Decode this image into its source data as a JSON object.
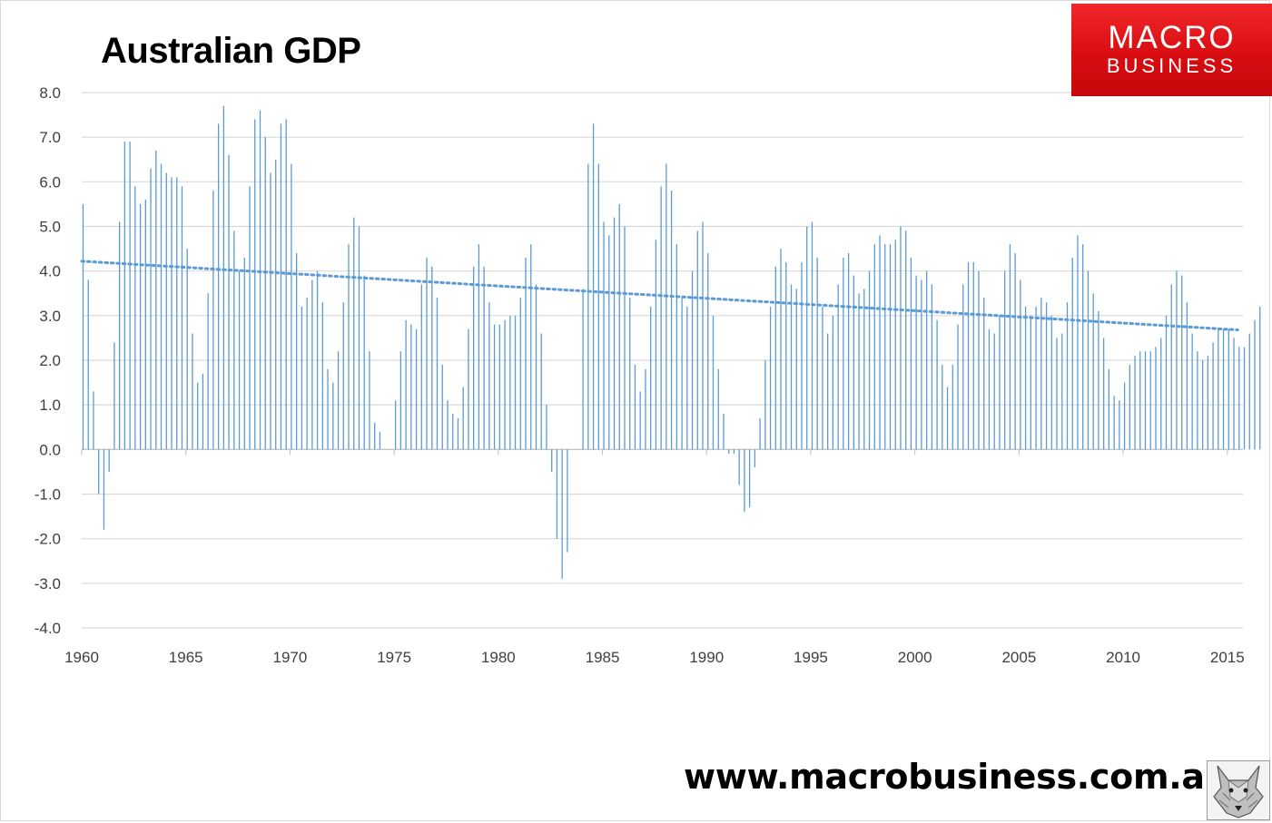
{
  "title": "Australian GDP",
  "brand": {
    "line1": "MACRO",
    "line2": "BUSINESS",
    "color": "#e8191e"
  },
  "footer": {
    "url": "www.macrobusiness.com.au"
  },
  "chart_data": {
    "type": "bar",
    "title": "Australian GDP",
    "xlabel": "",
    "ylabel": "",
    "ylim": [
      -4,
      8
    ],
    "xlim": [
      1960,
      2015.75
    ],
    "grid": true,
    "bar_color": "#5b9bd5",
    "trendline": {
      "type": "linear",
      "style": "dotted",
      "color": "#5b9bd5",
      "from": [
        1960,
        4.22
      ],
      "to": [
        2015.5,
        2.68
      ]
    },
    "y_ticks": [
      "8.0",
      "7.0",
      "6.0",
      "5.0",
      "4.0",
      "3.0",
      "2.0",
      "1.0",
      "0.0",
      "-1.0",
      "-2.0",
      "-3.0",
      "-4.0"
    ],
    "x_ticks": [
      "1960",
      "1965",
      "1970",
      "1975",
      "1980",
      "1985",
      "1990",
      "1995",
      "2000",
      "2005",
      "2010",
      "2015"
    ],
    "x_start": 1960,
    "x_step": 0.25,
    "values": [
      5.5,
      3.8,
      1.3,
      -1.0,
      -1.8,
      -0.5,
      2.4,
      5.1,
      6.9,
      6.9,
      5.9,
      5.5,
      5.6,
      6.3,
      6.7,
      6.4,
      6.2,
      6.1,
      6.1,
      5.9,
      4.5,
      2.6,
      1.5,
      1.7,
      3.5,
      5.8,
      7.3,
      7.7,
      6.6,
      4.9,
      4.0,
      4.3,
      5.9,
      7.4,
      7.6,
      7.0,
      6.2,
      6.5,
      7.3,
      7.4,
      6.4,
      4.4,
      3.2,
      3.4,
      3.8,
      4.0,
      3.3,
      1.8,
      1.5,
      2.2,
      3.3,
      4.6,
      5.2,
      5.0,
      3.9,
      2.2,
      0.6,
      0.4,
      0.0,
      0.0,
      1.1,
      2.2,
      2.9,
      2.8,
      2.7,
      3.7,
      4.3,
      4.1,
      3.4,
      1.9,
      1.1,
      0.8,
      0.7,
      1.4,
      2.7,
      4.1,
      4.6,
      4.1,
      3.3,
      2.8,
      2.8,
      2.9,
      3.0,
      3.0,
      3.4,
      4.3,
      4.6,
      3.7,
      2.6,
      1.0,
      -0.5,
      -2.0,
      -2.9,
      -2.3,
      0.0,
      0.0,
      3.6,
      6.4,
      7.3,
      6.4,
      5.1,
      4.8,
      5.2,
      5.5,
      5.0,
      3.4,
      1.9,
      1.3,
      1.8,
      3.2,
      4.7,
      5.9,
      6.4,
      5.8,
      4.6,
      3.4,
      3.2,
      4.0,
      4.9,
      5.1,
      4.4,
      3.0,
      1.8,
      0.8,
      -0.1,
      -0.1,
      -0.8,
      -1.4,
      -1.3,
      -0.4,
      0.7,
      2.0,
      3.2,
      4.1,
      4.5,
      4.2,
      3.7,
      3.6,
      4.2,
      5.0,
      5.1,
      4.3,
      3.2,
      2.6,
      3.0,
      3.7,
      4.3,
      4.4,
      3.9,
      3.5,
      3.6,
      4.0,
      4.6,
      4.8,
      4.6,
      4.6,
      4.7,
      5.0,
      4.9,
      4.3,
      3.9,
      3.8,
      4.0,
      3.7,
      2.9,
      1.9,
      1.4,
      1.9,
      2.8,
      3.7,
      4.2,
      4.2,
      4.0,
      3.4,
      2.7,
      2.6,
      3.0,
      4.0,
      4.6,
      4.4,
      3.8,
      3.2,
      3.0,
      3.2,
      3.4,
      3.3,
      3.0,
      2.5,
      2.6,
      3.3,
      4.3,
      4.8,
      4.6,
      4.0,
      3.5,
      3.1,
      2.5,
      1.8,
      1.2,
      1.1,
      1.5,
      1.9,
      2.1,
      2.2,
      2.2,
      2.2,
      2.3,
      2.5,
      3.0,
      3.7,
      4.0,
      3.9,
      3.3,
      2.6,
      2.2,
      2.0,
      2.1,
      2.4,
      2.7,
      2.7,
      2.7,
      2.5,
      2.3,
      2.3,
      2.6,
      2.9,
      3.2
    ]
  }
}
